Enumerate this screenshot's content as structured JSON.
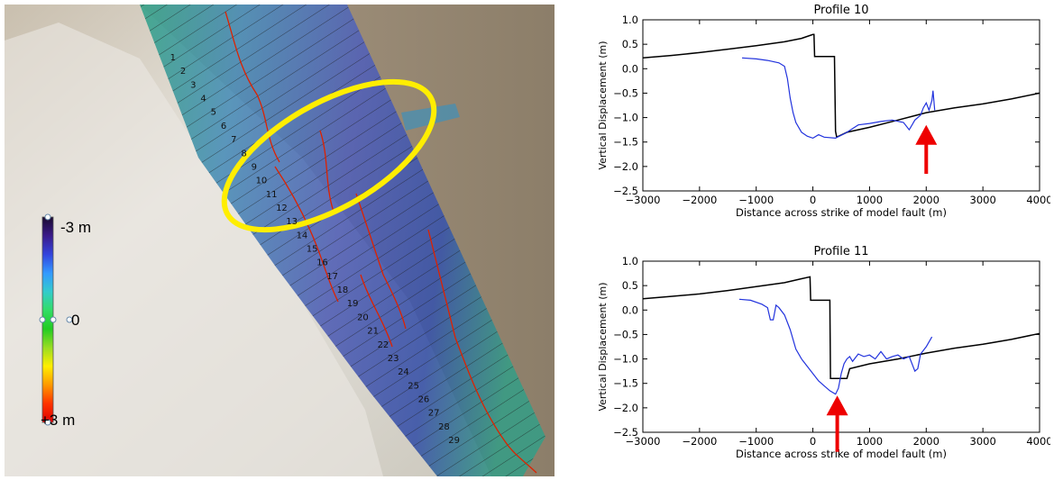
{
  "map": {
    "profile_numbers": [
      "1",
      "2",
      "3",
      "4",
      "5",
      "6",
      "7",
      "8",
      "9",
      "10",
      "11",
      "12",
      "13",
      "14",
      "15",
      "16",
      "17",
      "18",
      "19",
      "20",
      "21",
      "22",
      "23",
      "24",
      "25",
      "26",
      "27",
      "28",
      "29"
    ],
    "colorbar": {
      "top_label": "-3 m",
      "mid_label": "0",
      "bottom_label": "+3 m",
      "colors": [
        "#1a0a2e",
        "#3a1a8a",
        "#3344dd",
        "#3399ff",
        "#33cccc",
        "#33dd66",
        "#22cc22",
        "#99dd22",
        "#ffee00",
        "#ff9900",
        "#ff3300",
        "#dd0000"
      ]
    },
    "highlight_color": "#ffee00",
    "fault_color": "#dd2200"
  },
  "chart_data": [
    {
      "type": "line",
      "title": "Profile 10",
      "xlabel": "Distance across strike of model fault (m)",
      "ylabel": "Vertical Displacement (m)",
      "xlim": [
        -3000,
        4000
      ],
      "ylim": [
        -2.5,
        1.0
      ],
      "xticks": [
        -3000,
        -2000,
        -1000,
        0,
        1000,
        2000,
        3000,
        4000
      ],
      "yticks": [
        1.0,
        0.5,
        0.0,
        -0.5,
        -1.0,
        -1.5,
        -2.0,
        -2.5
      ],
      "grid": false,
      "series": [
        {
          "color": "#000000",
          "x": [
            -3000,
            -2500,
            -2000,
            -1500,
            -1000,
            -500,
            -200,
            0,
            20,
            30,
            200,
            380,
            400,
            420,
            600,
            1000,
            1500,
            2000,
            2500,
            3000,
            3500,
            4000
          ],
          "y": [
            0.22,
            0.27,
            0.33,
            0.4,
            0.47,
            0.55,
            0.62,
            0.7,
            0.7,
            0.25,
            0.25,
            0.25,
            -1.28,
            -1.4,
            -1.3,
            -1.2,
            -1.05,
            -0.9,
            -0.8,
            -0.72,
            -0.62,
            -0.5
          ]
        },
        {
          "color": "#2233dd",
          "x": [
            -1250,
            -1000,
            -800,
            -600,
            -500,
            -450,
            -400,
            -350,
            -300,
            -200,
            -100,
            0,
            100,
            200,
            400,
            600,
            800,
            1000,
            1200,
            1400,
            1600,
            1700,
            1750,
            1800,
            1900,
            1950,
            2000,
            2050,
            2100,
            2120,
            2150
          ],
          "y": [
            0.22,
            0.2,
            0.17,
            0.12,
            0.05,
            -0.2,
            -0.6,
            -0.9,
            -1.1,
            -1.3,
            -1.38,
            -1.42,
            -1.35,
            -1.4,
            -1.42,
            -1.3,
            -1.15,
            -1.12,
            -1.08,
            -1.05,
            -1.1,
            -1.25,
            -1.15,
            -1.05,
            -0.95,
            -0.8,
            -0.7,
            -0.85,
            -0.65,
            -0.45,
            -0.85
          ]
        }
      ],
      "annotations": [
        {
          "type": "arrow",
          "x": 2000,
          "y_tip": -1.15,
          "y_tail": -2.15,
          "color": "#ee0000"
        }
      ]
    },
    {
      "type": "line",
      "title": "Profile 11",
      "xlabel": "Distance across strike of model fault (m)",
      "ylabel": "Vertical Displacement (m)",
      "xlim": [
        -3000,
        4000
      ],
      "ylim": [
        -2.5,
        1.0
      ],
      "xticks": [
        -3000,
        -2000,
        -1000,
        0,
        1000,
        2000,
        3000,
        4000
      ],
      "yticks": [
        1.0,
        0.5,
        0.0,
        -0.5,
        -1.0,
        -1.5,
        -2.0,
        -2.5
      ],
      "grid": false,
      "series": [
        {
          "color": "#000000",
          "x": [
            -3000,
            -2500,
            -2000,
            -1500,
            -1000,
            -500,
            -200,
            -50,
            -40,
            300,
            310,
            600,
            650,
            1000,
            1500,
            2000,
            2500,
            3000,
            3500,
            4000
          ],
          "y": [
            0.23,
            0.28,
            0.33,
            0.4,
            0.48,
            0.56,
            0.64,
            0.68,
            0.2,
            0.2,
            -1.4,
            -1.4,
            -1.2,
            -1.1,
            -1.0,
            -0.88,
            -0.78,
            -0.7,
            -0.6,
            -0.48
          ]
        },
        {
          "color": "#2233dd",
          "x": [
            -1300,
            -1100,
            -900,
            -800,
            -750,
            -700,
            -650,
            -600,
            -500,
            -400,
            -300,
            -200,
            -100,
            0,
            100,
            200,
            300,
            400,
            450,
            500,
            550,
            600,
            650,
            700,
            800,
            900,
            1000,
            1100,
            1200,
            1300,
            1400,
            1500,
            1600,
            1700,
            1800,
            1850,
            1900,
            2000,
            2100
          ],
          "y": [
            0.22,
            0.2,
            0.12,
            0.05,
            -0.2,
            -0.2,
            0.1,
            0.05,
            -0.1,
            -0.4,
            -0.8,
            -1.0,
            -1.15,
            -1.3,
            -1.45,
            -1.55,
            -1.65,
            -1.72,
            -1.6,
            -1.3,
            -1.1,
            -1.0,
            -0.95,
            -1.05,
            -0.9,
            -0.95,
            -0.92,
            -1.0,
            -0.85,
            -1.0,
            -0.95,
            -0.92,
            -1.0,
            -0.95,
            -1.25,
            -1.2,
            -0.9,
            -0.75,
            -0.55
          ]
        }
      ],
      "annotations": [
        {
          "type": "arrow",
          "x": 430,
          "y_tip": -1.75,
          "y_tail": -2.9,
          "color": "#ee0000"
        }
      ]
    }
  ]
}
